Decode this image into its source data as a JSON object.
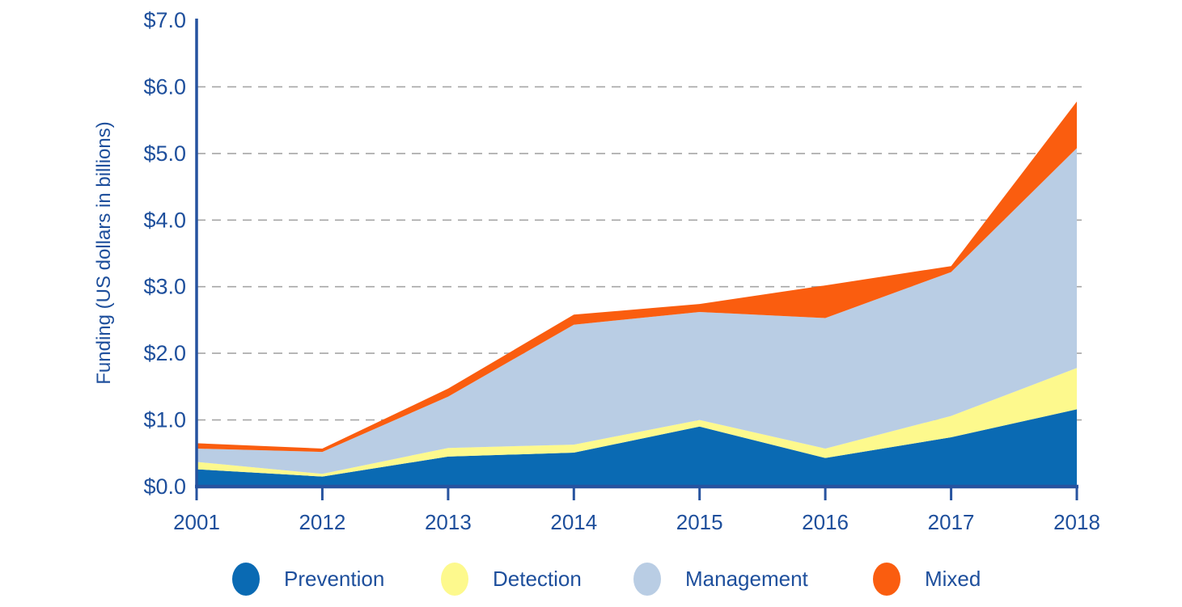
{
  "chart_data": {
    "type": "area",
    "stacked": true,
    "title": "",
    "xlabel": "",
    "ylabel": "Funding (US dollars in billions)",
    "categories": [
      "2001",
      "2012",
      "2013",
      "2014",
      "2015",
      "2016",
      "2017",
      "2018"
    ],
    "series": [
      {
        "name": "Prevention",
        "color": "#0a6ab3",
        "values": [
          0.26,
          0.15,
          0.45,
          0.51,
          0.9,
          0.43,
          0.74,
          1.16
        ]
      },
      {
        "name": "Detection",
        "color": "#fdf98d",
        "values": [
          0.11,
          0.04,
          0.13,
          0.12,
          0.1,
          0.14,
          0.32,
          0.62
        ]
      },
      {
        "name": "Management",
        "color": "#b9cde4",
        "values": [
          0.2,
          0.33,
          0.77,
          1.8,
          1.62,
          1.96,
          2.16,
          3.3
        ]
      },
      {
        "name": "Mixed",
        "color": "#fa5d0f",
        "values": [
          0.08,
          0.05,
          0.12,
          0.15,
          0.12,
          0.49,
          0.09,
          0.7
        ]
      }
    ],
    "cumulative_tops": {
      "prevention": [
        0.26,
        0.15,
        0.45,
        0.51,
        0.9,
        0.43,
        0.74,
        1.16
      ],
      "detection": [
        0.37,
        0.19,
        0.58,
        0.63,
        1.0,
        0.57,
        1.06,
        1.78
      ],
      "management": [
        0.57,
        0.52,
        1.35,
        2.43,
        2.62,
        2.53,
        3.22,
        5.08
      ],
      "mixed": [
        0.65,
        0.57,
        1.47,
        2.58,
        2.74,
        3.02,
        3.31,
        5.78
      ]
    },
    "ylim": [
      0,
      7
    ],
    "ytick_labels": [
      "$0.0",
      "$1.0",
      "$2.0",
      "$3.0",
      "$4.0",
      "$5.0",
      "$6.0",
      "$7.0"
    ],
    "grid": "horizontal-dashed",
    "legend_position": "bottom",
    "axis_color": "#27539f",
    "text_color": "#1e4f9c",
    "grid_color": "#a6a6a6"
  }
}
